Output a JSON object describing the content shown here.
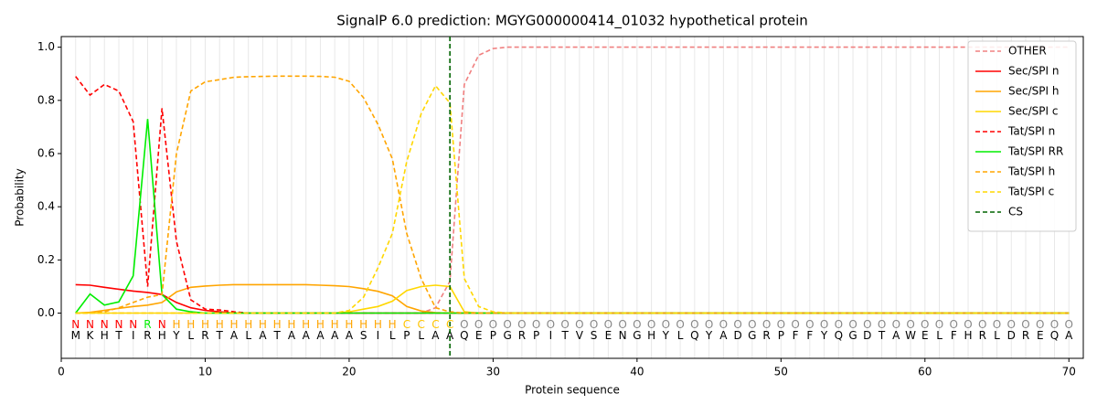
{
  "chart_data": {
    "type": "line",
    "title": "SignalP 6.0 prediction: MGYG000000414_01032 hypothetical protein",
    "x_label": "Protein sequence",
    "y_label": "Probability",
    "xlim": [
      0,
      71
    ],
    "ylim": [
      -0.17,
      1.04
    ],
    "xticks": [
      0,
      10,
      20,
      30,
      40,
      50,
      60,
      70
    ],
    "yticks": [
      {
        "value": 0,
        "label": "0.0"
      },
      {
        "value": 0.2,
        "label": "0.2"
      },
      {
        "value": 0.4,
        "label": "0.4"
      },
      {
        "value": 0.6,
        "label": "0.6"
      },
      {
        "value": 0.8,
        "label": "0.8"
      },
      {
        "value": 1,
        "label": "1.0"
      }
    ],
    "legend": "upper right",
    "grid": true,
    "x": [
      1,
      2,
      3,
      4,
      5,
      6,
      7,
      8,
      9,
      10,
      11,
      12,
      13,
      14,
      15,
      16,
      17,
      18,
      19,
      20,
      21,
      22,
      23,
      24,
      25,
      26,
      27,
      28,
      29,
      30,
      31,
      32,
      33,
      34,
      35,
      36,
      37,
      38,
      39,
      40,
      41,
      42,
      43,
      44,
      45,
      46,
      47,
      48,
      49,
      50,
      51,
      52,
      53,
      54,
      55,
      56,
      57,
      58,
      59,
      60,
      61,
      62,
      63,
      64,
      65,
      66,
      67,
      68,
      69,
      70
    ],
    "series": [
      {
        "name": "OTHER",
        "color": "#f08080",
        "dashed": true,
        "values": [
          0,
          0,
          0,
          0,
          0,
          0,
          0,
          0,
          0,
          0,
          0,
          0,
          0,
          0,
          0,
          0,
          0,
          0,
          0,
          0,
          0,
          0,
          0,
          0,
          0,
          0.02,
          0.12,
          0.86,
          0.97,
          0.995,
          1,
          1,
          1,
          1,
          1,
          1,
          1,
          1,
          1,
          1,
          1,
          1,
          1,
          1,
          1,
          1,
          1,
          1,
          1,
          1,
          1,
          1,
          1,
          1,
          1,
          1,
          1,
          1,
          1,
          1,
          1,
          1,
          1,
          1,
          1,
          1,
          1,
          1,
          1,
          1
        ]
      },
      {
        "name": "Sec/SPI n",
        "color": "#ff0000",
        "dashed": false,
        "values": [
          0.107,
          0.105,
          0.097,
          0.09,
          0.083,
          0.078,
          0.07,
          0.04,
          0.02,
          0.01,
          0.005,
          0,
          0,
          0,
          0,
          0,
          0,
          0,
          0,
          0,
          0,
          0,
          0,
          0,
          0,
          0,
          0,
          0,
          0,
          0,
          0,
          0,
          0,
          0,
          0,
          0,
          0,
          0,
          0,
          0,
          0,
          0,
          0,
          0,
          0,
          0,
          0,
          0,
          0,
          0,
          0,
          0,
          0,
          0,
          0,
          0,
          0,
          0,
          0,
          0,
          0,
          0,
          0,
          0,
          0,
          0,
          0,
          0,
          0,
          0
        ]
      },
      {
        "name": "Sec/SPI h",
        "color": "#ffa500",
        "dashed": false,
        "values": [
          0,
          0.003,
          0.01,
          0.018,
          0.025,
          0.03,
          0.04,
          0.08,
          0.097,
          0.102,
          0.105,
          0.107,
          0.107,
          0.107,
          0.107,
          0.107,
          0.107,
          0.105,
          0.103,
          0.1,
          0.092,
          0.082,
          0.065,
          0.025,
          0.008,
          0.002,
          0,
          0,
          0,
          0,
          0,
          0,
          0,
          0,
          0,
          0,
          0,
          0,
          0,
          0,
          0,
          0,
          0,
          0,
          0,
          0,
          0,
          0,
          0,
          0,
          0,
          0,
          0,
          0,
          0,
          0,
          0,
          0,
          0,
          0,
          0,
          0,
          0,
          0,
          0,
          0,
          0,
          0,
          0,
          0
        ]
      },
      {
        "name": "Sec/SPI c",
        "color": "#ffd700",
        "dashed": false,
        "values": [
          0,
          0,
          0,
          0,
          0,
          0,
          0,
          0,
          0,
          0,
          0,
          0,
          0,
          0,
          0,
          0,
          0,
          0,
          0,
          0.005,
          0.015,
          0.025,
          0.045,
          0.085,
          0.1,
          0.105,
          0.1,
          0.005,
          0,
          0,
          0,
          0,
          0,
          0,
          0,
          0,
          0,
          0,
          0,
          0,
          0,
          0,
          0,
          0,
          0,
          0,
          0,
          0,
          0,
          0,
          0,
          0,
          0,
          0,
          0,
          0,
          0,
          0,
          0,
          0,
          0,
          0,
          0,
          0,
          0,
          0,
          0,
          0,
          0,
          0
        ]
      },
      {
        "name": "Tat/SPI n",
        "color": "#ff0000",
        "dashed": true,
        "values": [
          0.89,
          0.82,
          0.86,
          0.835,
          0.72,
          0.1,
          0.77,
          0.27,
          0.05,
          0.015,
          0.012,
          0.005,
          0,
          0,
          0,
          0,
          0,
          0,
          0,
          0,
          0,
          0,
          0,
          0,
          0,
          0,
          0,
          0,
          0,
          0,
          0,
          0,
          0,
          0,
          0,
          0,
          0,
          0,
          0,
          0,
          0,
          0,
          0,
          0,
          0,
          0,
          0,
          0,
          0,
          0,
          0,
          0,
          0,
          0,
          0,
          0,
          0,
          0,
          0,
          0,
          0,
          0,
          0,
          0,
          0,
          0,
          0,
          0,
          0,
          0
        ]
      },
      {
        "name": "Tat/SPI RR",
        "color": "#00ee00",
        "dashed": false,
        "values": [
          0,
          0.072,
          0.03,
          0.042,
          0.14,
          0.73,
          0.07,
          0.015,
          0.005,
          0,
          0,
          0,
          0,
          0,
          0,
          0,
          0,
          0,
          0,
          0,
          0,
          0,
          0,
          0,
          0,
          0,
          0,
          0,
          0,
          0,
          0,
          0,
          0,
          0,
          0,
          0,
          0,
          0,
          0,
          0,
          0,
          0,
          0,
          0,
          0,
          0,
          0,
          0,
          0,
          0,
          0,
          0,
          0,
          0,
          0,
          0,
          0,
          0,
          0,
          0,
          0,
          0,
          0,
          0,
          0,
          0,
          0,
          0,
          0,
          0
        ]
      },
      {
        "name": "Tat/SPI h",
        "color": "#ffa500",
        "dashed": true,
        "values": [
          0,
          0,
          0.005,
          0.02,
          0.04,
          0.06,
          0.07,
          0.6,
          0.835,
          0.87,
          0.878,
          0.887,
          0.889,
          0.89,
          0.891,
          0.891,
          0.891,
          0.89,
          0.887,
          0.872,
          0.81,
          0.71,
          0.58,
          0.3,
          0.13,
          0.02,
          0.005,
          0,
          0,
          0,
          0,
          0,
          0,
          0,
          0,
          0,
          0,
          0,
          0,
          0,
          0,
          0,
          0,
          0,
          0,
          0,
          0,
          0,
          0,
          0,
          0,
          0,
          0,
          0,
          0,
          0,
          0,
          0,
          0,
          0,
          0,
          0,
          0,
          0,
          0,
          0,
          0,
          0,
          0,
          0
        ]
      },
      {
        "name": "Tat/SPI c",
        "color": "#ffd700",
        "dashed": true,
        "values": [
          0,
          0,
          0,
          0,
          0,
          0,
          0,
          0,
          0,
          0,
          0,
          0,
          0,
          0,
          0,
          0,
          0,
          0,
          0,
          0.01,
          0.06,
          0.17,
          0.3,
          0.57,
          0.75,
          0.855,
          0.79,
          0.13,
          0.025,
          0.005,
          0,
          0,
          0,
          0,
          0,
          0,
          0,
          0,
          0,
          0,
          0,
          0,
          0,
          0,
          0,
          0,
          0,
          0,
          0,
          0,
          0,
          0,
          0,
          0,
          0,
          0,
          0,
          0,
          0,
          0,
          0,
          0,
          0,
          0,
          0,
          0,
          0,
          0,
          0,
          0
        ]
      }
    ],
    "cs": {
      "name": "CS",
      "color": "#006400",
      "x": 27
    },
    "sequence": [
      "M",
      "K",
      "H",
      "T",
      "I",
      "R",
      "H",
      "Y",
      "L",
      "R",
      "T",
      "A",
      "L",
      "A",
      "T",
      "A",
      "A",
      "A",
      "A",
      "A",
      "S",
      "I",
      "L",
      "P",
      "L",
      "A",
      "A",
      "Q",
      "E",
      "P",
      "G",
      "R",
      "P",
      "I",
      "T",
      "V",
      "S",
      "E",
      "N",
      "G",
      "H",
      "Y",
      "L",
      "Q",
      "Y",
      "A",
      "D",
      "G",
      "R",
      "P",
      "F",
      "F",
      "Y",
      "Q",
      "G",
      "D",
      "T",
      "A",
      "W",
      "E",
      "L",
      "F",
      "H",
      "R",
      "L",
      "D",
      "R",
      "E",
      "Q",
      "A"
    ],
    "labels": [
      "N",
      "N",
      "N",
      "N",
      "N",
      "R",
      "N",
      "H",
      "H",
      "H",
      "H",
      "H",
      "H",
      "H",
      "H",
      "H",
      "H",
      "H",
      "H",
      "H",
      "H",
      "H",
      "H",
      "C",
      "C",
      "C",
      "C",
      "O",
      "O",
      "O",
      "O",
      "O",
      "O",
      "O",
      "O",
      "O",
      "O",
      "O",
      "O",
      "O",
      "O",
      "O",
      "O",
      "O",
      "O",
      "O",
      "O",
      "O",
      "O",
      "O",
      "O",
      "O",
      "O",
      "O",
      "O",
      "O",
      "O",
      "O",
      "O",
      "O",
      "O",
      "O",
      "O",
      "O",
      "O",
      "O",
      "O",
      "O",
      "O",
      "O"
    ],
    "label_colors": {
      "N": "#ff0000",
      "R": "#00ee00",
      "H": "#ffa500",
      "C": "#ffc400",
      "O": "#888888"
    }
  }
}
